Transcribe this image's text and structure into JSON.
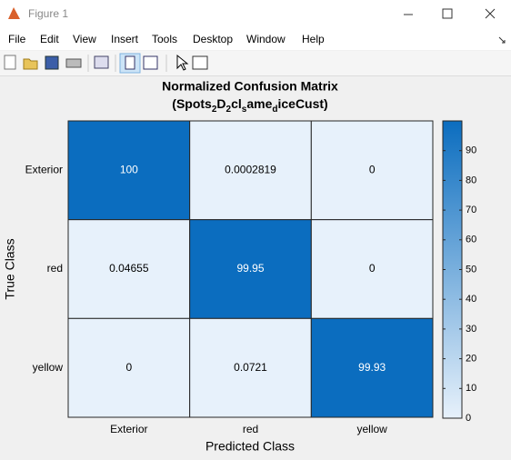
{
  "window": {
    "title": "Figure 1",
    "menu": [
      "File",
      "Edit",
      "View",
      "Insert",
      "Tools",
      "Desktop",
      "Window",
      "Help"
    ]
  },
  "chart_data": {
    "type": "heatmap",
    "title": "Normalized Confusion Matrix",
    "subtitle": [
      "(Spots",
      "2",
      "D",
      "2",
      "cl",
      "s",
      "ame",
      "d",
      "iceCust)"
    ],
    "xlabel": "Predicted Class",
    "ylabel": "True Class",
    "x_categories": [
      "Exterior",
      "red",
      "yellow"
    ],
    "y_categories": [
      "Exterior",
      "red",
      "yellow"
    ],
    "values": [
      [
        100,
        0.0002819,
        0
      ],
      [
        0.04655,
        99.95,
        0
      ],
      [
        0,
        0.0721,
        99.93
      ]
    ],
    "colormap": [
      "#e7f1fb",
      "#0b6dbf"
    ],
    "clim": [
      0,
      100
    ],
    "cticks": [
      0,
      10,
      20,
      30,
      40,
      50,
      60,
      70,
      80,
      90
    ]
  }
}
